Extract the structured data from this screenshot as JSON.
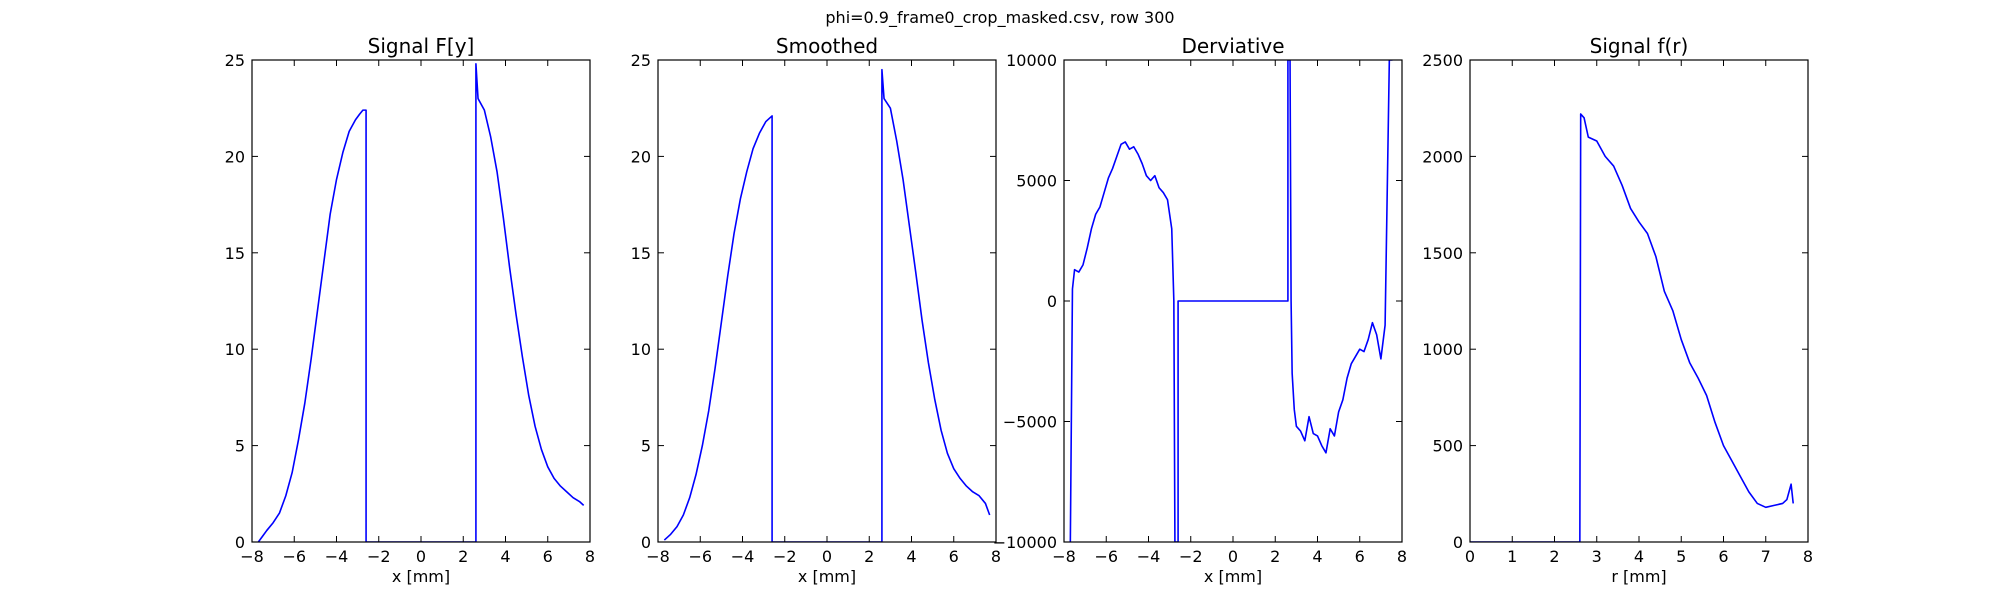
{
  "figure": {
    "suptitle": "phi=0.9_frame0_crop_masked.csv, row 300"
  },
  "colors": {
    "line": "#0000ff",
    "axes": "#000000",
    "background": "#ffffff"
  },
  "chart_data": [
    {
      "type": "line",
      "title": "Signal F[y]",
      "xlabel": "x [mm]",
      "ylabel": "",
      "xlim": [
        -8,
        8
      ],
      "ylim": [
        0,
        25
      ],
      "xticks": [
        -8,
        -6,
        -4,
        -2,
        0,
        2,
        4,
        6,
        8
      ],
      "yticks": [
        0,
        5,
        10,
        15,
        20,
        25
      ],
      "grid": false,
      "series": [
        {
          "x": [
            -7.7,
            -7.5,
            -7.3,
            -7.0,
            -6.7,
            -6.4,
            -6.1,
            -5.8,
            -5.5,
            -5.2,
            -4.9,
            -4.6,
            -4.3,
            -4.0,
            -3.7,
            -3.4,
            -3.1,
            -2.9,
            -2.75,
            -2.6,
            -2.6,
            2.6,
            2.6,
            2.7,
            3.0,
            3.3,
            3.6,
            3.9,
            4.2,
            4.5,
            4.8,
            5.1,
            5.4,
            5.7,
            6.0,
            6.3,
            6.6,
            6.9,
            7.2,
            7.5,
            7.7
          ],
          "y": [
            0.0,
            0.3,
            0.6,
            1.0,
            1.5,
            2.4,
            3.6,
            5.3,
            7.2,
            9.5,
            12.0,
            14.5,
            17.0,
            18.8,
            20.2,
            21.3,
            21.9,
            22.2,
            22.4,
            22.4,
            0.0,
            0.0,
            24.8,
            23.0,
            22.4,
            21.0,
            19.2,
            16.8,
            14.2,
            11.8,
            9.6,
            7.6,
            6.0,
            4.8,
            3.9,
            3.3,
            2.9,
            2.6,
            2.3,
            2.1,
            1.9
          ]
        }
      ]
    },
    {
      "type": "line",
      "title": "Smoothed",
      "xlabel": "x [mm]",
      "ylabel": "",
      "xlim": [
        -8,
        8
      ],
      "ylim": [
        0,
        25
      ],
      "xticks": [
        -8,
        -6,
        -4,
        -2,
        0,
        2,
        4,
        6,
        8
      ],
      "yticks": [
        0,
        5,
        10,
        15,
        20,
        25
      ],
      "grid": false,
      "series": [
        {
          "x": [
            -7.7,
            -7.4,
            -7.1,
            -6.8,
            -6.5,
            -6.2,
            -5.9,
            -5.6,
            -5.3,
            -5.0,
            -4.7,
            -4.4,
            -4.1,
            -3.8,
            -3.5,
            -3.2,
            -2.9,
            -2.7,
            -2.6,
            -2.6,
            2.6,
            2.6,
            2.7,
            3.0,
            3.3,
            3.6,
            3.9,
            4.2,
            4.5,
            4.8,
            5.1,
            5.4,
            5.7,
            6.0,
            6.3,
            6.6,
            6.9,
            7.2,
            7.5,
            7.7
          ],
          "y": [
            0.1,
            0.4,
            0.8,
            1.4,
            2.3,
            3.5,
            5.0,
            6.8,
            9.0,
            11.4,
            13.8,
            16.0,
            17.8,
            19.2,
            20.4,
            21.2,
            21.8,
            22.0,
            22.1,
            0.0,
            0.0,
            24.5,
            23.0,
            22.5,
            20.8,
            18.8,
            16.4,
            14.0,
            11.5,
            9.3,
            7.4,
            5.8,
            4.6,
            3.8,
            3.3,
            2.9,
            2.6,
            2.4,
            2.0,
            1.4
          ]
        }
      ]
    },
    {
      "type": "line",
      "title": "Derviative",
      "xlabel": "x [mm]",
      "ylabel": "",
      "xlim": [
        -8,
        8
      ],
      "ylim": [
        -10000,
        10000
      ],
      "xticks": [
        -8,
        -6,
        -4,
        -2,
        0,
        2,
        4,
        6,
        8
      ],
      "yticks": [
        -10000,
        -5000,
        0,
        5000,
        10000
      ],
      "grid": false,
      "series": [
        {
          "x": [
            -7.7,
            -7.6,
            -7.5,
            -7.3,
            -7.1,
            -6.9,
            -6.7,
            -6.5,
            -6.3,
            -6.1,
            -5.9,
            -5.7,
            -5.5,
            -5.3,
            -5.1,
            -4.9,
            -4.7,
            -4.5,
            -4.3,
            -4.1,
            -3.9,
            -3.7,
            -3.5,
            -3.3,
            -3.1,
            -2.9,
            -2.8,
            -2.75,
            -2.7,
            -2.6,
            -2.6,
            2.6,
            2.6,
            2.7,
            2.75,
            2.8,
            2.9,
            3.0,
            3.2,
            3.4,
            3.6,
            3.8,
            4.0,
            4.2,
            4.4,
            4.6,
            4.8,
            5.0,
            5.2,
            5.4,
            5.6,
            5.8,
            6.0,
            6.2,
            6.4,
            6.6,
            6.8,
            7.0,
            7.2,
            7.4,
            7.5,
            7.55
          ],
          "y": [
            -10000,
            500,
            1300,
            1200,
            1500,
            2200,
            3000,
            3600,
            3900,
            4500,
            5100,
            5500,
            6000,
            6500,
            6600,
            6300,
            6400,
            6100,
            5700,
            5200,
            5000,
            5200,
            4700,
            4500,
            4200,
            3000,
            0,
            -10000,
            -10000,
            -10000,
            0,
            0,
            10000,
            10000,
            0,
            -3000,
            -4500,
            -5200,
            -5400,
            -5800,
            -4800,
            -5500,
            -5600,
            -6000,
            -6300,
            -5300,
            -5600,
            -4600,
            -4100,
            -3200,
            -2600,
            -2300,
            -2000,
            -2100,
            -1600,
            -900,
            -1400,
            -2400,
            -1000,
            10000,
            10000,
            10000
          ]
        }
      ]
    },
    {
      "type": "line",
      "title": "Signal f(r)",
      "xlabel": "r [mm]",
      "ylabel": "",
      "xlim": [
        0,
        8
      ],
      "ylim": [
        0,
        2500
      ],
      "xticks": [
        0,
        1,
        2,
        3,
        4,
        5,
        6,
        7,
        8
      ],
      "yticks": [
        0,
        500,
        1000,
        1500,
        2000,
        2500
      ],
      "grid": false,
      "series": [
        {
          "x": [
            0.0,
            2.6,
            2.62,
            2.7,
            2.8,
            3.0,
            3.2,
            3.4,
            3.6,
            3.8,
            4.0,
            4.2,
            4.4,
            4.6,
            4.8,
            5.0,
            5.2,
            5.4,
            5.6,
            5.8,
            6.0,
            6.2,
            6.4,
            6.6,
            6.8,
            7.0,
            7.2,
            7.4,
            7.5,
            7.6,
            7.65
          ],
          "y": [
            0,
            0,
            2220,
            2200,
            2100,
            2080,
            2000,
            1950,
            1850,
            1730,
            1660,
            1600,
            1480,
            1300,
            1200,
            1050,
            930,
            850,
            760,
            620,
            500,
            420,
            340,
            260,
            200,
            180,
            190,
            200,
            220,
            300,
            200
          ]
        }
      ]
    }
  ]
}
